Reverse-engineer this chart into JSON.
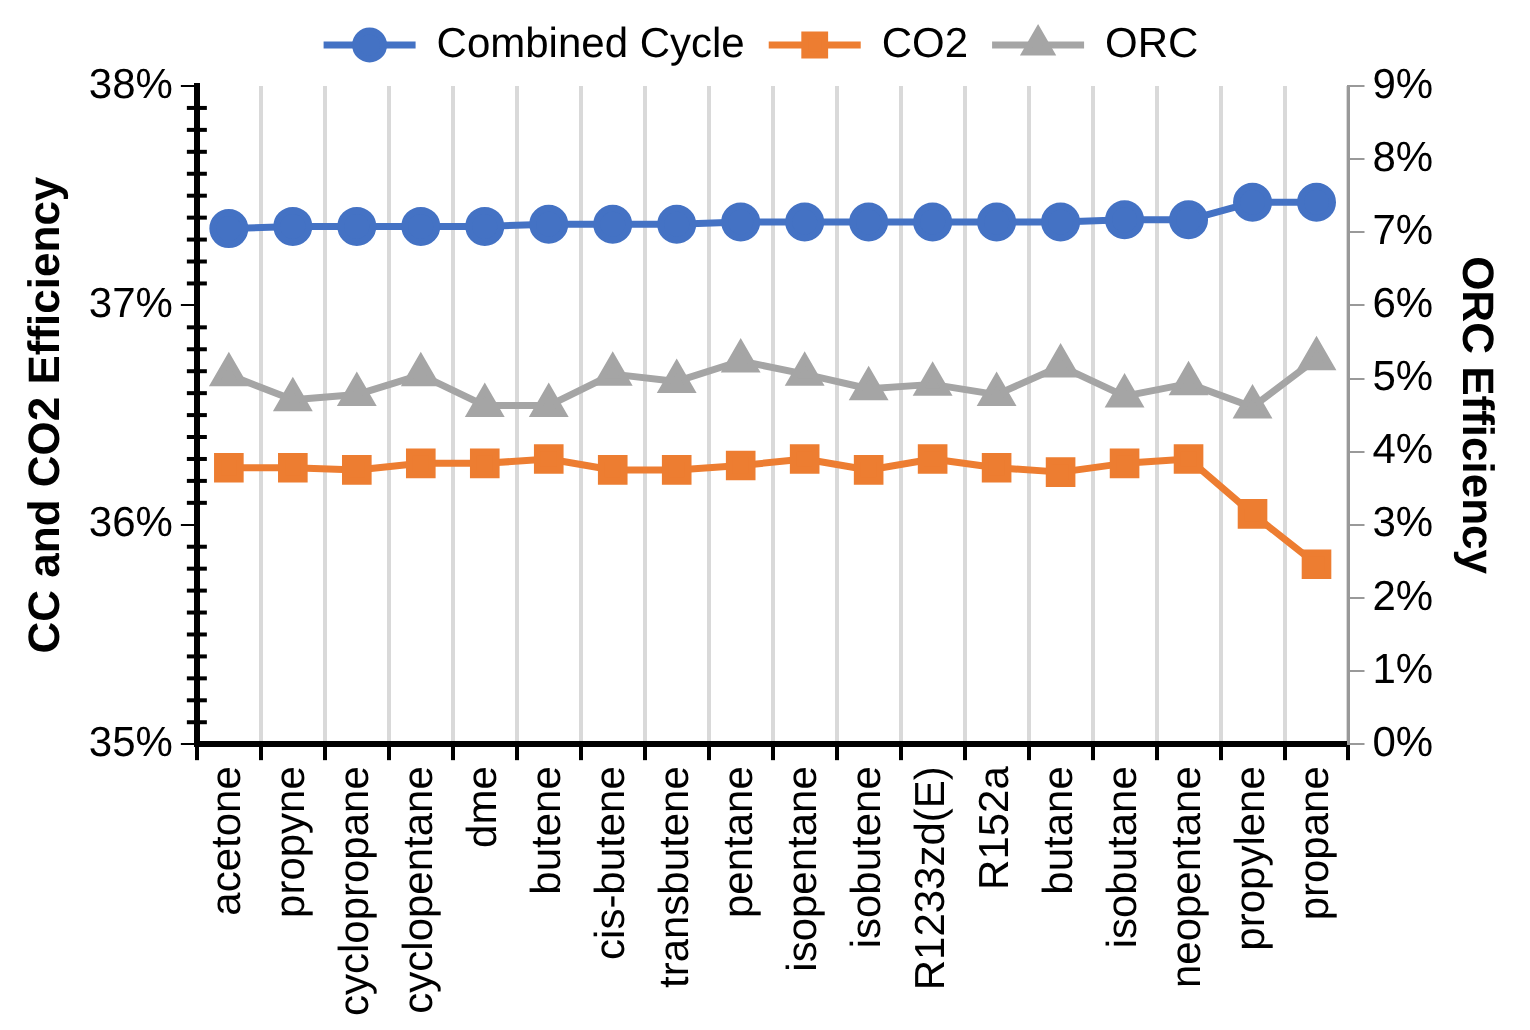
{
  "chart_data": {
    "type": "line",
    "categories": [
      "acetone",
      "propyne",
      "cyclopropane",
      "cyclopentane",
      "dme",
      "butene",
      "cis-butene",
      "transbutene",
      "pentane",
      "isopentane",
      "isobutene",
      "R1233zd(E)",
      "R152a",
      "butane",
      "isobutane",
      "neopentane",
      "propylene",
      "propane"
    ],
    "series": [
      {
        "name": "Combined Cycle",
        "color": "#4472c4",
        "marker": "circle",
        "values": [
          37.35,
          37.36,
          37.36,
          37.36,
          37.36,
          37.37,
          37.37,
          37.37,
          37.38,
          37.38,
          37.38,
          37.38,
          37.38,
          37.38,
          37.39,
          37.39,
          37.47,
          37.47
        ]
      },
      {
        "name": "CO2",
        "color": "#ed7d31",
        "marker": "square",
        "values": [
          36.26,
          36.26,
          36.25,
          36.28,
          36.28,
          36.3,
          36.25,
          36.25,
          36.27,
          36.3,
          36.25,
          36.3,
          36.26,
          36.24,
          36.28,
          36.3,
          36.05,
          35.82
        ]
      },
      {
        "name": "ORC",
        "color": "#a5a5a5",
        "marker": "triangle",
        "axis": "y2",
        "values": [
          5.05,
          4.71,
          4.78,
          5.05,
          4.63,
          4.63,
          5.06,
          4.96,
          5.24,
          5.06,
          4.86,
          4.92,
          4.78,
          5.17,
          4.76,
          4.93,
          4.61,
          5.27
        ]
      }
    ],
    "ylabel": "CC and CO2 Efficiency",
    "y2label": "ORC Efficiency",
    "ylim": [
      35,
      38
    ],
    "yticks": [
      {
        "value": 35,
        "label": "35%"
      },
      {
        "value": 36,
        "label": "36%"
      },
      {
        "value": 37,
        "label": "37%"
      },
      {
        "value": 38,
        "label": "38%"
      }
    ],
    "y2lim": [
      0,
      9
    ],
    "y2ticks": [
      {
        "value": 0,
        "label": "0%"
      },
      {
        "value": 1,
        "label": "1%"
      },
      {
        "value": 2,
        "label": "2%"
      },
      {
        "value": 3,
        "label": "3%"
      },
      {
        "value": 4,
        "label": "4%"
      },
      {
        "value": 5,
        "label": "5%"
      },
      {
        "value": 6,
        "label": "6%"
      },
      {
        "value": 7,
        "label": "7%"
      },
      {
        "value": 8,
        "label": "8%"
      },
      {
        "value": 9,
        "label": "9%"
      }
    ],
    "grid": "x",
    "legend": "top",
    "line_style": "solid"
  }
}
